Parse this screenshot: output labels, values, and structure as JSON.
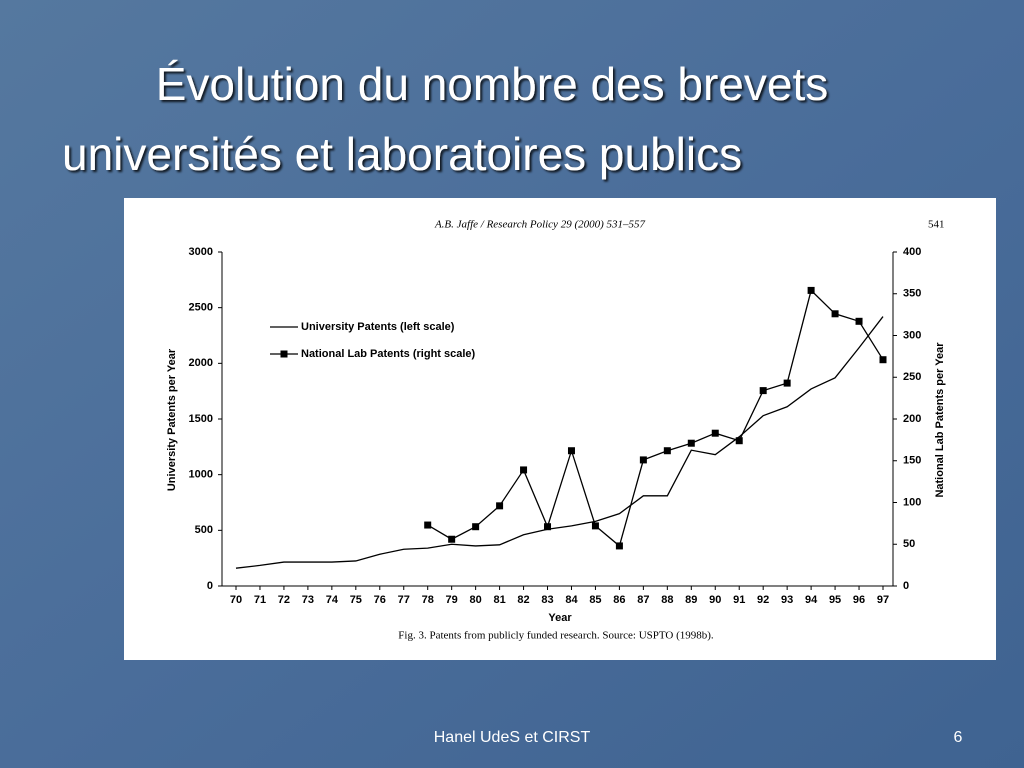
{
  "slide": {
    "title": [
      "Évolution du nombre des brevets",
      "universités et laboratoires publics"
    ],
    "footer": "Hanel UdeS et CIRST",
    "page_number": "6"
  },
  "chart_data": {
    "type": "line",
    "header": "A.B. Jaffe / Research Policy 29 (2000) 531–557",
    "page": "541",
    "caption": "Fig. 3. Patents from publicly funded research. Source: USPTO (1998b).",
    "xlabel": "Year",
    "ylabel": "University Patents per Year",
    "y2label": "National Lab Patents per Year",
    "categories": [
      "70",
      "71",
      "72",
      "73",
      "74",
      "75",
      "76",
      "77",
      "78",
      "79",
      "80",
      "81",
      "82",
      "83",
      "84",
      "85",
      "86",
      "87",
      "88",
      "89",
      "90",
      "91",
      "92",
      "93",
      "94",
      "95",
      "96",
      "97"
    ],
    "series": [
      {
        "name": "University Patents (left scale)",
        "color": "#000000",
        "marker": "none",
        "values": [
          160,
          185,
          215,
          215,
          215,
          225,
          285,
          330,
          340,
          375,
          360,
          370,
          460,
          510,
          540,
          580,
          650,
          810,
          810,
          1220,
          1180,
          1340,
          1530,
          1610,
          1770,
          1870,
          2140,
          2420
        ]
      },
      {
        "name": "National Lab Patents (right scale)",
        "color": "#000000",
        "marker": "square",
        "axis": "y2",
        "values": [
          null,
          null,
          null,
          null,
          null,
          null,
          null,
          null,
          73,
          56,
          71,
          96,
          139,
          71,
          162,
          72,
          48,
          151,
          162,
          171,
          183,
          174,
          234,
          243,
          354,
          326,
          317,
          271
        ]
      }
    ],
    "ylim": [
      0,
      3000
    ],
    "yticks": [
      0,
      500,
      1000,
      1500,
      2000,
      2500,
      3000
    ],
    "y2lim": [
      0,
      400
    ],
    "y2ticks": [
      0,
      50,
      100,
      150,
      200,
      250,
      300,
      350,
      400
    ],
    "legend": "upper left",
    "grid": false
  }
}
